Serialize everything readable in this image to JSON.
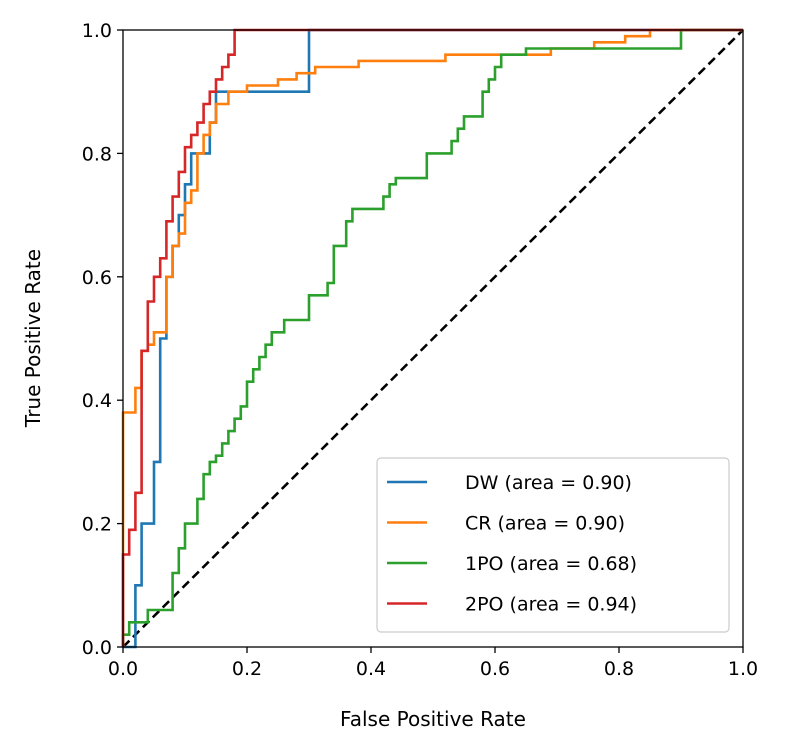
{
  "chart_data": {
    "type": "line",
    "title": "",
    "xlabel": "False Positive Rate",
    "ylabel": "True Positive Rate",
    "xlim": [
      0.0,
      1.0
    ],
    "ylim": [
      0.0,
      1.0
    ],
    "xticks": [
      "0.0",
      "0.2",
      "0.4",
      "0.6",
      "0.8",
      "1.0"
    ],
    "yticks": [
      "0.0",
      "0.2",
      "0.4",
      "0.6",
      "0.8",
      "1.0"
    ],
    "grid": false,
    "legend": "lower-right",
    "series": [
      {
        "name": "DW (area = 0.90)",
        "color": "#1f77b4",
        "x": [
          0.0,
          0.02,
          0.02,
          0.03,
          0.03,
          0.05,
          0.05,
          0.06,
          0.06,
          0.07,
          0.07,
          0.08,
          0.08,
          0.09,
          0.09,
          0.1,
          0.1,
          0.11,
          0.11,
          0.12,
          0.12,
          0.14,
          0.14,
          0.15,
          0.15,
          0.3,
          0.3,
          1.0
        ],
        "y": [
          0.0,
          0.0,
          0.1,
          0.1,
          0.2,
          0.2,
          0.3,
          0.3,
          0.5,
          0.5,
          0.6,
          0.6,
          0.65,
          0.65,
          0.7,
          0.7,
          0.75,
          0.75,
          0.8,
          0.8,
          0.8,
          0.8,
          0.85,
          0.85,
          0.9,
          0.9,
          1.0,
          1.0
        ]
      },
      {
        "name": "CR (area = 0.90)",
        "color": "#ff7f0e",
        "x": [
          0.0,
          0.0,
          0.02,
          0.02,
          0.03,
          0.03,
          0.04,
          0.04,
          0.05,
          0.05,
          0.07,
          0.07,
          0.08,
          0.08,
          0.09,
          0.09,
          0.1,
          0.1,
          0.11,
          0.11,
          0.12,
          0.12,
          0.13,
          0.13,
          0.14,
          0.14,
          0.15,
          0.15,
          0.17,
          0.17,
          0.2,
          0.2,
          0.25,
          0.25,
          0.28,
          0.28,
          0.31,
          0.31,
          0.38,
          0.38,
          0.45,
          0.45,
          0.52,
          0.52,
          0.6,
          0.6,
          0.64,
          0.64,
          0.69,
          0.69,
          0.76,
          0.76,
          0.81,
          0.81,
          0.85,
          0.85,
          1.0
        ],
        "y": [
          0.0,
          0.38,
          0.38,
          0.42,
          0.42,
          0.48,
          0.48,
          0.49,
          0.49,
          0.51,
          0.51,
          0.6,
          0.6,
          0.65,
          0.65,
          0.67,
          0.67,
          0.72,
          0.72,
          0.74,
          0.74,
          0.8,
          0.8,
          0.83,
          0.83,
          0.85,
          0.85,
          0.88,
          0.88,
          0.9,
          0.9,
          0.91,
          0.91,
          0.92,
          0.92,
          0.93,
          0.93,
          0.94,
          0.94,
          0.95,
          0.95,
          0.95,
          0.95,
          0.96,
          0.96,
          0.96,
          0.96,
          0.96,
          0.96,
          0.97,
          0.97,
          0.98,
          0.98,
          0.99,
          0.99,
          1.0,
          1.0
        ]
      },
      {
        "name": "1PO (area = 0.68)",
        "color": "#2ca02c",
        "x": [
          0.0,
          0.0,
          0.01,
          0.01,
          0.04,
          0.04,
          0.08,
          0.08,
          0.09,
          0.09,
          0.1,
          0.1,
          0.12,
          0.12,
          0.13,
          0.13,
          0.14,
          0.14,
          0.15,
          0.15,
          0.16,
          0.16,
          0.17,
          0.17,
          0.18,
          0.18,
          0.19,
          0.19,
          0.2,
          0.2,
          0.21,
          0.21,
          0.22,
          0.22,
          0.23,
          0.23,
          0.24,
          0.24,
          0.25,
          0.25,
          0.26,
          0.26,
          0.3,
          0.3,
          0.33,
          0.33,
          0.34,
          0.34,
          0.36,
          0.36,
          0.37,
          0.37,
          0.42,
          0.42,
          0.43,
          0.43,
          0.44,
          0.44,
          0.49,
          0.49,
          0.53,
          0.53,
          0.54,
          0.54,
          0.55,
          0.55,
          0.58,
          0.58,
          0.59,
          0.59,
          0.6,
          0.6,
          0.61,
          0.61,
          0.63,
          0.63,
          0.65,
          0.65,
          0.9,
          0.9,
          1.0
        ],
        "y": [
          0.0,
          0.02,
          0.02,
          0.04,
          0.04,
          0.06,
          0.06,
          0.12,
          0.12,
          0.16,
          0.16,
          0.2,
          0.2,
          0.24,
          0.24,
          0.28,
          0.28,
          0.3,
          0.3,
          0.31,
          0.31,
          0.33,
          0.33,
          0.35,
          0.35,
          0.37,
          0.37,
          0.39,
          0.39,
          0.43,
          0.43,
          0.45,
          0.45,
          0.47,
          0.47,
          0.49,
          0.49,
          0.51,
          0.51,
          0.51,
          0.51,
          0.53,
          0.53,
          0.57,
          0.57,
          0.59,
          0.59,
          0.65,
          0.65,
          0.69,
          0.69,
          0.71,
          0.71,
          0.73,
          0.73,
          0.75,
          0.75,
          0.76,
          0.76,
          0.8,
          0.8,
          0.82,
          0.82,
          0.84,
          0.84,
          0.86,
          0.86,
          0.9,
          0.9,
          0.92,
          0.92,
          0.94,
          0.94,
          0.96,
          0.96,
          0.96,
          0.96,
          0.97,
          0.97,
          1.0,
          1.0
        ]
      },
      {
        "name": "2PO (area = 0.94)",
        "color": "#d62728",
        "x": [
          0.0,
          0.0,
          0.01,
          0.01,
          0.02,
          0.02,
          0.03,
          0.03,
          0.04,
          0.04,
          0.05,
          0.05,
          0.06,
          0.06,
          0.07,
          0.07,
          0.08,
          0.08,
          0.09,
          0.09,
          0.1,
          0.1,
          0.11,
          0.11,
          0.12,
          0.12,
          0.13,
          0.13,
          0.14,
          0.14,
          0.15,
          0.15,
          0.16,
          0.16,
          0.17,
          0.17,
          0.18,
          0.18,
          1.0
        ],
        "y": [
          0.0,
          0.15,
          0.15,
          0.19,
          0.19,
          0.25,
          0.25,
          0.48,
          0.48,
          0.56,
          0.56,
          0.6,
          0.6,
          0.63,
          0.63,
          0.69,
          0.69,
          0.73,
          0.73,
          0.77,
          0.77,
          0.81,
          0.81,
          0.83,
          0.83,
          0.85,
          0.85,
          0.88,
          0.88,
          0.9,
          0.9,
          0.92,
          0.92,
          0.94,
          0.94,
          0.96,
          0.96,
          1.0,
          1.0
        ]
      }
    ],
    "reference_line": {
      "style": "dashed",
      "color": "#000000",
      "x": [
        0.0,
        1.0
      ],
      "y": [
        0.0,
        1.0
      ]
    }
  }
}
